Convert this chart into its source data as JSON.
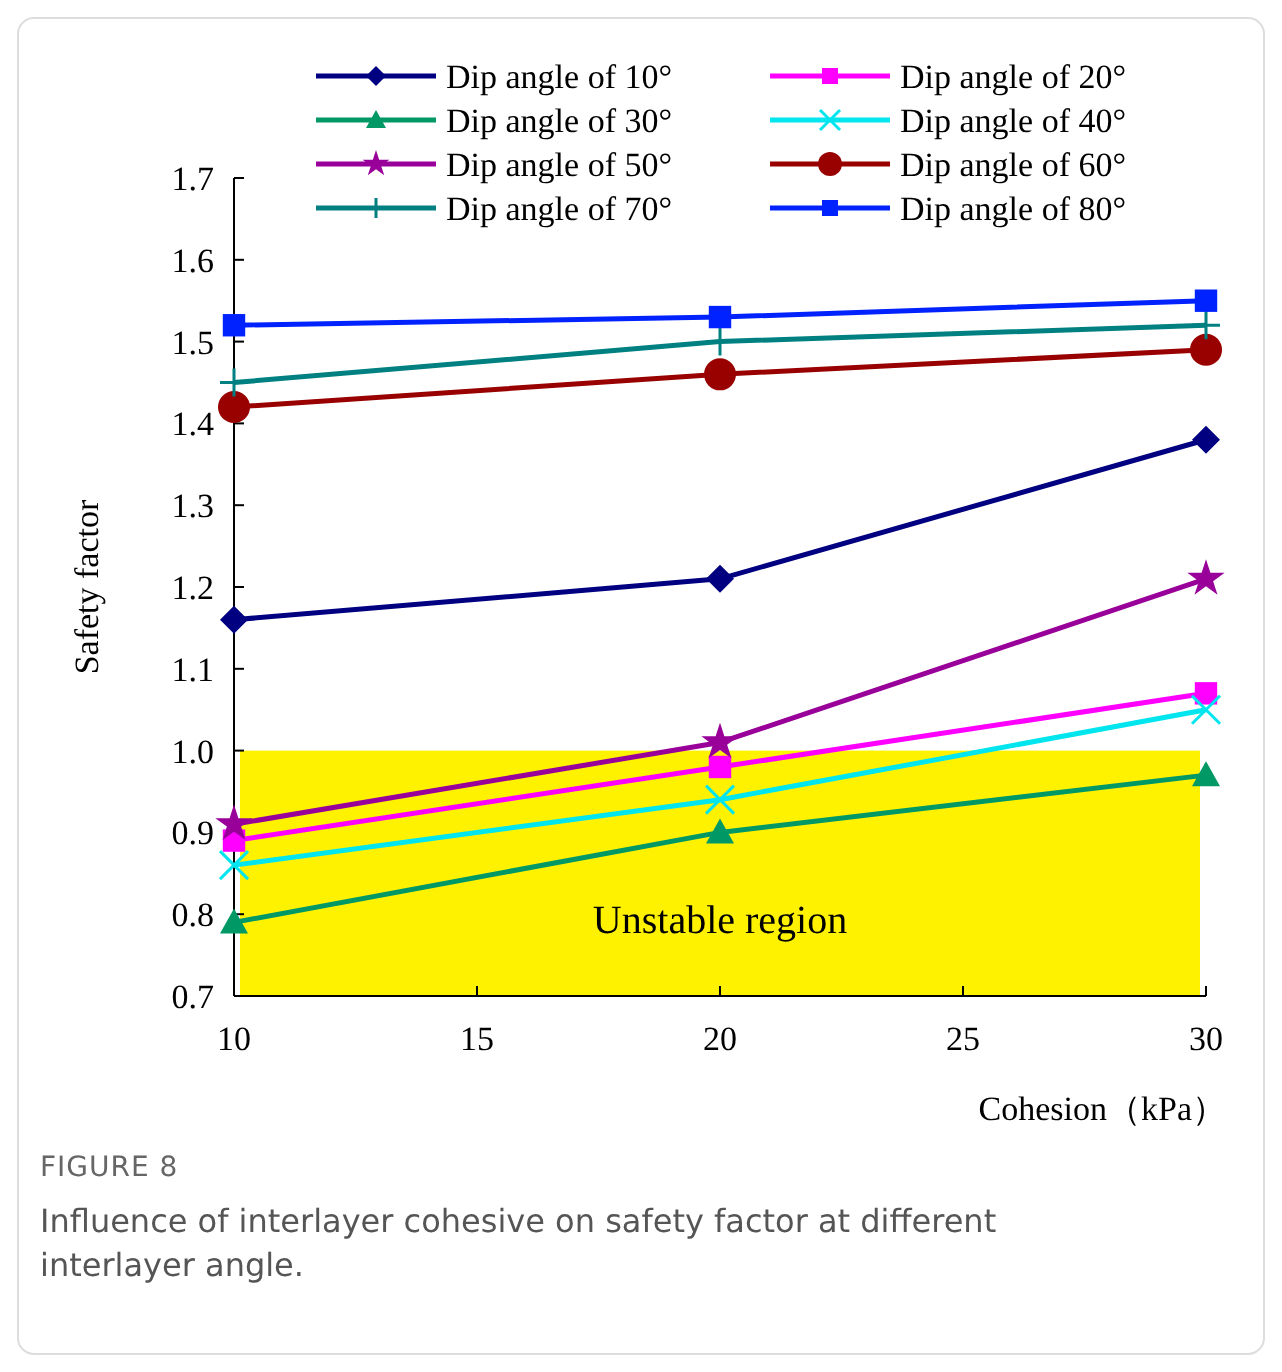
{
  "chart_data": {
    "type": "line",
    "xlabel": "Cohesion（kPa）",
    "ylabel": "Safety factor",
    "x": [
      10,
      20,
      30
    ],
    "xlim": [
      10,
      30
    ],
    "xticks": [
      10,
      15,
      20,
      25,
      30
    ],
    "ylim": [
      0.7,
      1.7
    ],
    "yticks": [
      {
        "value": 0.7,
        "label": "0.7"
      },
      {
        "value": 0.8,
        "label": "0.8"
      },
      {
        "value": 0.9,
        "label": "0.9"
      },
      {
        "value": 1.0,
        "label": "1.0"
      },
      {
        "value": 1.1,
        "label": "1.1"
      },
      {
        "value": 1.2,
        "label": "1.2"
      },
      {
        "value": 1.3,
        "label": "1.3"
      },
      {
        "value": 1.4,
        "label": "1.4"
      },
      {
        "value": 1.5,
        "label": "1.5"
      },
      {
        "value": 1.6,
        "label": "1.6"
      },
      {
        "value": 1.7,
        "label": "1.7"
      }
    ],
    "grid": false,
    "legend": "top",
    "line_style": "solid",
    "series": [
      {
        "name": "Dip angle of 10°",
        "color": "#000080",
        "marker": "diamond",
        "values": [
          1.16,
          1.21,
          1.38
        ]
      },
      {
        "name": "Dip angle of 20°",
        "color": "#ff00ff",
        "marker": "square",
        "values": [
          0.89,
          0.98,
          1.07
        ]
      },
      {
        "name": "Dip angle of 30°",
        "color": "#009966",
        "marker": "triangle",
        "values": [
          0.79,
          0.9,
          0.97
        ]
      },
      {
        "name": "Dip angle of 40°",
        "color": "#00e5ee",
        "marker": "x",
        "values": [
          0.86,
          0.94,
          1.05
        ]
      },
      {
        "name": "Dip angle of 50°",
        "color": "#990099",
        "marker": "star",
        "values": [
          0.91,
          1.01,
          1.21
        ]
      },
      {
        "name": "Dip angle of 60°",
        "color": "#990000",
        "marker": "circle",
        "values": [
          1.42,
          1.46,
          1.49
        ]
      },
      {
        "name": "Dip angle of 70°",
        "color": "#008080",
        "marker": "cross",
        "values": [
          1.45,
          1.5,
          1.52
        ]
      },
      {
        "name": "Dip angle of 80°",
        "color": "#0022ff",
        "marker": "square",
        "values": [
          1.52,
          1.53,
          1.55
        ]
      }
    ],
    "bands": [
      {
        "axis": "y",
        "from": 0.7,
        "to": 1.0,
        "label": "Unstable region",
        "color": "#fff200"
      }
    ],
    "annotations": [
      "FIGURE 8",
      "Influence of interlayer cohesive on safety factor at different interlayer angle."
    ]
  }
}
